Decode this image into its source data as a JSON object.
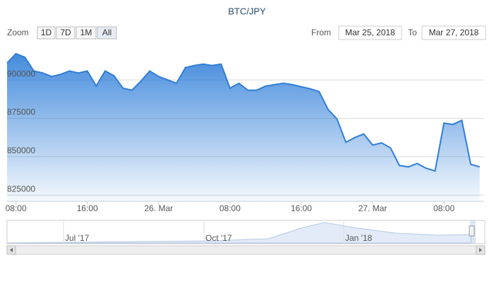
{
  "chart_data": {
    "type": "area",
    "title": "BTC/JPY",
    "color": "#2f7ed8",
    "grid": true,
    "x": [
      "2018-03-25T07:00",
      "2018-03-25T08:00",
      "2018-03-25T09:00",
      "2018-03-25T10:00",
      "2018-03-25T11:00",
      "2018-03-25T12:00",
      "2018-03-25T13:00",
      "2018-03-25T14:00",
      "2018-03-25T15:00",
      "2018-03-25T16:00",
      "2018-03-25T17:00",
      "2018-03-25T18:00",
      "2018-03-25T19:00",
      "2018-03-25T20:00",
      "2018-03-25T21:00",
      "2018-03-25T22:00",
      "2018-03-25T23:00",
      "2018-03-26T00:00",
      "2018-03-26T01:00",
      "2018-03-26T02:00",
      "2018-03-26T03:00",
      "2018-03-26T04:00",
      "2018-03-26T05:00",
      "2018-03-26T06:00",
      "2018-03-26T07:00",
      "2018-03-26T08:00",
      "2018-03-26T09:00",
      "2018-03-26T10:00",
      "2018-03-26T11:00",
      "2018-03-26T12:00",
      "2018-03-26T13:00",
      "2018-03-26T14:00",
      "2018-03-26T15:00",
      "2018-03-26T16:00",
      "2018-03-26T17:00",
      "2018-03-26T18:00",
      "2018-03-26T19:00",
      "2018-03-26T20:00",
      "2018-03-26T21:00",
      "2018-03-26T22:00",
      "2018-03-26T23:00",
      "2018-03-27T00:00",
      "2018-03-27T01:00",
      "2018-03-27T02:00",
      "2018-03-27T03:00",
      "2018-03-27T04:00",
      "2018-03-27T05:00",
      "2018-03-27T06:00",
      "2018-03-27T07:00",
      "2018-03-27T08:00",
      "2018-03-27T09:00",
      "2018-03-27T10:00",
      "2018-03-27T11:00",
      "2018-03-27T12:00"
    ],
    "values": [
      911000,
      917000,
      914700,
      905800,
      904500,
      902200,
      903600,
      905800,
      904500,
      905800,
      896000,
      905800,
      902700,
      894600,
      893300,
      899100,
      905800,
      902200,
      900000,
      897800,
      908000,
      909400,
      910300,
      909400,
      910300,
      894600,
      897800,
      893300,
      893300,
      896000,
      896900,
      897800,
      896900,
      895500,
      894200,
      892400,
      880800,
      874600,
      859400,
      862500,
      864800,
      857600,
      859000,
      855800,
      844300,
      843400,
      845600,
      842500,
      840700,
      871900,
      871000,
      873700,
      845100,
      843400
    ],
    "xlim": [
      "2018-03-25T07:00",
      "2018-03-27T12:30"
    ],
    "xticks": [
      {
        "value": "2018-03-25T08:00",
        "label": "08:00"
      },
      {
        "value": "2018-03-25T16:00",
        "label": "16:00"
      },
      {
        "value": "2018-03-26T00:00",
        "label": "26. Mar"
      },
      {
        "value": "2018-03-26T08:00",
        "label": "08:00"
      },
      {
        "value": "2018-03-26T16:00",
        "label": "16:00"
      },
      {
        "value": "2018-03-27T00:00",
        "label": "27. Mar"
      },
      {
        "value": "2018-03-27T08:00",
        "label": "08:00"
      }
    ],
    "ylim": [
      821000,
      923500
    ],
    "yticks": [
      825000,
      850000,
      875000,
      900000
    ]
  },
  "range_selector": {
    "zoom_label": "Zoom",
    "buttons": [
      "1D",
      "7D",
      "1M",
      "All"
    ],
    "from_label": "From",
    "from": "Mar 25, 2018",
    "to_label": "To",
    "to": "Mar 27, 2018"
  },
  "navigator": {
    "labels": [
      "Jul '17",
      "Oct '17",
      "Jan '18"
    ]
  }
}
